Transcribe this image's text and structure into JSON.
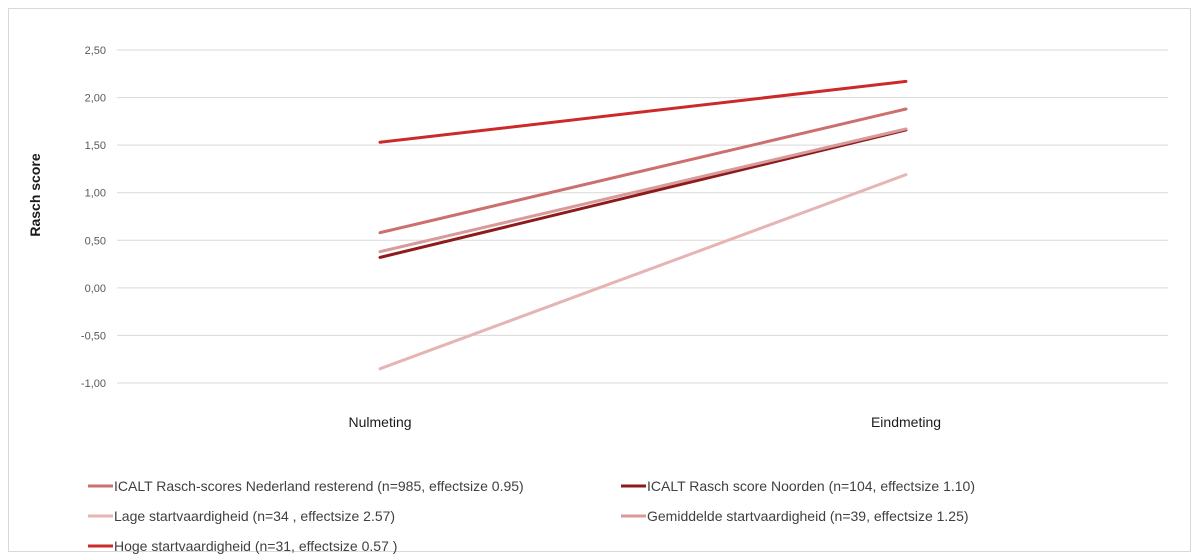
{
  "chart_data": {
    "type": "line",
    "title": "",
    "xlabel": "",
    "ylabel": "Rasch score",
    "categories": [
      "Nulmeting",
      "Eindmeting"
    ],
    "ylim": [
      -1.0,
      2.5
    ],
    "yticks": [
      2.5,
      2.0,
      1.5,
      1.0,
      0.5,
      0.0,
      -0.5,
      -1.0
    ],
    "ytick_labels": [
      "2,50",
      "2,00",
      "1,50",
      "1,00",
      "0,50",
      "0,00",
      "-0,50",
      "-1,00"
    ],
    "grid": true,
    "legend_position": "bottom",
    "series": [
      {
        "name": "ICALT Rasch-scores Nederland resterend (n=985, effectsize 0.95)",
        "values": [
          0.58,
          1.88
        ],
        "color": "#cc6f6f"
      },
      {
        "name": "ICALT Rasch score Noorden (n=104, effectsize 1.10)",
        "values": [
          0.32,
          1.66
        ],
        "color": "#8e1b1b"
      },
      {
        "name": "Lage startvaardigheid (n=34 , effectsize 2.57)",
        "values": [
          -0.85,
          1.19
        ],
        "color": "#e5b5b5"
      },
      {
        "name": "Gemiddelde startvaardigheid (n=39, effectsize 1.25)",
        "values": [
          0.38,
          1.67
        ],
        "color": "#d89a9a"
      },
      {
        "name": "Hoge startvaardigheid (n=31, effectsize 0.57 )",
        "values": [
          1.53,
          2.17
        ],
        "color": "#cc2a2a"
      }
    ]
  }
}
